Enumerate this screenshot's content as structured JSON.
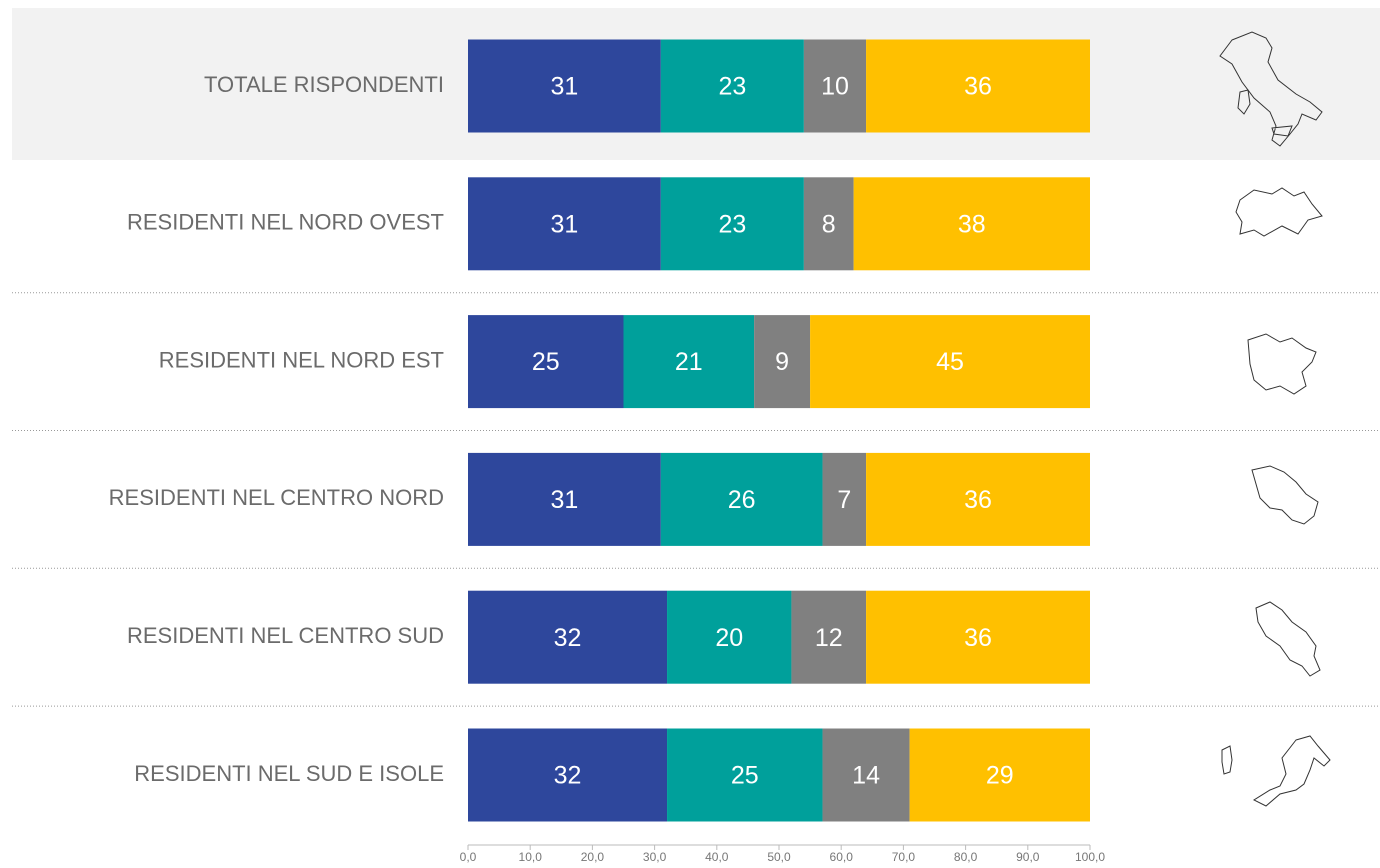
{
  "chart_data": {
    "type": "stacked-barh",
    "categories": [
      "TOTALE RISPONDENTI",
      "RESIDENTI NEL NORD OVEST",
      "RESIDENTI NEL NORD EST",
      "RESIDENTI NEL CENTRO NORD",
      "RESIDENTI NEL CENTRO SUD",
      "RESIDENTI NEL SUD E ISOLE"
    ],
    "series": [
      {
        "color": "#2e479c",
        "values": [
          31,
          31,
          25,
          31,
          32,
          32
        ]
      },
      {
        "color": "#00a09b",
        "values": [
          23,
          23,
          21,
          26,
          20,
          25
        ]
      },
      {
        "color": "#808080",
        "values": [
          10,
          8,
          9,
          7,
          12,
          14
        ]
      },
      {
        "color": "#ffc000",
        "values": [
          36,
          38,
          45,
          36,
          36,
          29
        ]
      }
    ],
    "xlim": [
      0,
      100
    ],
    "xticks": [
      {
        "value": 0,
        "label": "0,0"
      },
      {
        "value": 10,
        "label": "10,0"
      },
      {
        "value": 20,
        "label": "20,0"
      },
      {
        "value": 30,
        "label": "30,0"
      },
      {
        "value": 40,
        "label": "40,0"
      },
      {
        "value": 50,
        "label": "50,0"
      },
      {
        "value": 60,
        "label": "60,0"
      },
      {
        "value": 70,
        "label": "70,0"
      },
      {
        "value": 80,
        "label": "80,0"
      },
      {
        "value": 90,
        "label": "90,0"
      },
      {
        "value": 100,
        "label": "100,0"
      }
    ]
  }
}
